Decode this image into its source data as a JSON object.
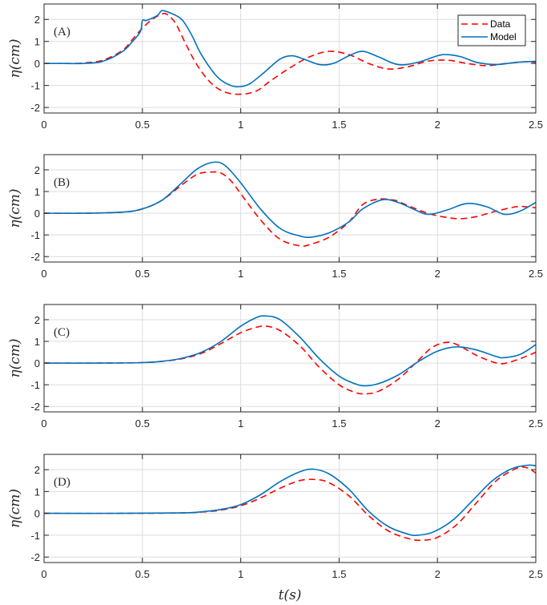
{
  "chart_data": [
    {
      "type": "line",
      "panel_label": "(A)",
      "xlim": [
        0,
        2.5
      ],
      "ylim": [
        -2.25,
        2.7
      ],
      "xticks": [
        "0",
        "0.5",
        "1",
        "1.5",
        "2",
        "2.5"
      ],
      "yticks": [
        "-2",
        "-1",
        "0",
        "1",
        "2"
      ],
      "ylabel": "η(cm)",
      "xlabel": "",
      "grid": true,
      "legend": {
        "placement": "top-right",
        "entries": [
          "Data",
          "Model"
        ]
      },
      "series": [
        {
          "name": "Data",
          "style": "dashed",
          "color": "#ff0000",
          "x": [
            0,
            0.1,
            0.2,
            0.3,
            0.4,
            0.45,
            0.5,
            0.55,
            0.6,
            0.63,
            0.67,
            0.72,
            0.78,
            0.85,
            0.92,
            1.0,
            1.08,
            1.15,
            1.25,
            1.35,
            1.45,
            1.55,
            1.65,
            1.75,
            1.85,
            1.95,
            2.05,
            2.15,
            2.25,
            2.35,
            2.45,
            2.5
          ],
          "y": [
            0,
            0,
            0.02,
            0.15,
            0.6,
            1.1,
            1.6,
            2.0,
            2.25,
            2.2,
            1.8,
            0.9,
            -0.1,
            -0.9,
            -1.3,
            -1.4,
            -1.25,
            -0.8,
            -0.2,
            0.3,
            0.55,
            0.4,
            0.0,
            -0.25,
            -0.15,
            0.1,
            0.15,
            0.0,
            -0.1,
            0.0,
            0.08,
            0.05
          ]
        },
        {
          "name": "Model",
          "style": "solid",
          "color": "#0072bd",
          "x": [
            0,
            0.1,
            0.2,
            0.3,
            0.4,
            0.45,
            0.49,
            0.5,
            0.52,
            0.56,
            0.58,
            0.6,
            0.64,
            0.7,
            0.75,
            0.8,
            0.88,
            0.95,
            1.0,
            1.05,
            1.12,
            1.2,
            1.26,
            1.32,
            1.4,
            1.47,
            1.55,
            1.62,
            1.7,
            1.8,
            1.9,
            2.0,
            2.05,
            2.12,
            2.2,
            2.3,
            2.4,
            2.5
          ],
          "y": [
            0,
            0,
            0,
            0.1,
            0.55,
            1.0,
            1.45,
            1.95,
            1.95,
            2.1,
            2.2,
            2.4,
            2.3,
            2.0,
            1.3,
            0.4,
            -0.6,
            -1.0,
            -1.05,
            -0.9,
            -0.4,
            0.2,
            0.35,
            0.2,
            -0.05,
            0.0,
            0.35,
            0.55,
            0.3,
            -0.05,
            0.05,
            0.35,
            0.4,
            0.3,
            0.05,
            -0.05,
            0.05,
            0.1
          ]
        }
      ]
    },
    {
      "type": "line",
      "panel_label": "(B)",
      "xlim": [
        0,
        2.5
      ],
      "ylim": [
        -2.25,
        2.7
      ],
      "xticks": [
        "0",
        "0.5",
        "1",
        "1.5",
        "2",
        "2.5"
      ],
      "yticks": [
        "-2",
        "-1",
        "0",
        "1",
        "2"
      ],
      "ylabel": "η(cm)",
      "xlabel": "",
      "grid": true,
      "series": [
        {
          "name": "Data",
          "style": "dashed",
          "color": "#ff0000",
          "x": [
            0,
            0.2,
            0.4,
            0.5,
            0.6,
            0.7,
            0.78,
            0.85,
            0.9,
            0.95,
            1.0,
            1.1,
            1.2,
            1.3,
            1.35,
            1.45,
            1.55,
            1.62,
            1.7,
            1.78,
            1.85,
            1.95,
            2.05,
            2.12,
            2.2,
            2.3,
            2.4,
            2.45,
            2.5
          ],
          "y": [
            0,
            0,
            0.05,
            0.2,
            0.6,
            1.3,
            1.8,
            1.9,
            1.85,
            1.5,
            0.9,
            -0.3,
            -1.2,
            -1.5,
            -1.45,
            -1.1,
            -0.4,
            0.4,
            0.65,
            0.6,
            0.35,
            0.0,
            -0.2,
            -0.25,
            -0.15,
            0.1,
            0.3,
            0.3,
            0.25
          ]
        },
        {
          "name": "Model",
          "style": "solid",
          "color": "#0072bd",
          "x": [
            0,
            0.2,
            0.4,
            0.5,
            0.6,
            0.7,
            0.78,
            0.86,
            0.92,
            1.0,
            1.1,
            1.2,
            1.3,
            1.36,
            1.45,
            1.55,
            1.62,
            1.72,
            1.8,
            1.9,
            1.96,
            2.05,
            2.15,
            2.25,
            2.34,
            2.42,
            2.5
          ],
          "y": [
            0,
            0,
            0.05,
            0.2,
            0.6,
            1.4,
            2.05,
            2.35,
            2.2,
            1.4,
            0.2,
            -0.7,
            -1.05,
            -1.1,
            -0.9,
            -0.4,
            0.2,
            0.62,
            0.5,
            0.1,
            -0.05,
            0.15,
            0.45,
            0.3,
            -0.05,
            0.1,
            0.5
          ]
        }
      ]
    },
    {
      "type": "line",
      "panel_label": "(C)",
      "xlim": [
        0,
        2.5
      ],
      "ylim": [
        -2.25,
        2.7
      ],
      "xticks": [
        "0",
        "0.5",
        "1",
        "1.5",
        "2",
        "2.5"
      ],
      "yticks": [
        "-2",
        "-1",
        "0",
        "1",
        "2"
      ],
      "ylabel": "η(cm)",
      "xlabel": "",
      "grid": true,
      "series": [
        {
          "name": "Data",
          "style": "dashed",
          "color": "#ff0000",
          "x": [
            0,
            0.3,
            0.5,
            0.6,
            0.7,
            0.8,
            0.9,
            1.0,
            1.08,
            1.13,
            1.2,
            1.3,
            1.4,
            1.5,
            1.58,
            1.63,
            1.7,
            1.8,
            1.9,
            1.97,
            2.04,
            2.1,
            2.2,
            2.3,
            2.35,
            2.42,
            2.5
          ],
          "y": [
            0,
            0,
            0.02,
            0.08,
            0.2,
            0.45,
            0.9,
            1.4,
            1.65,
            1.7,
            1.5,
            0.8,
            -0.2,
            -1.0,
            -1.35,
            -1.42,
            -1.3,
            -0.75,
            0.1,
            0.7,
            0.95,
            0.85,
            0.35,
            0.0,
            0.0,
            0.2,
            0.5
          ]
        },
        {
          "name": "Model",
          "style": "solid",
          "color": "#0072bd",
          "x": [
            0,
            0.3,
            0.5,
            0.6,
            0.7,
            0.8,
            0.9,
            1.0,
            1.08,
            1.13,
            1.2,
            1.3,
            1.4,
            1.5,
            1.58,
            1.63,
            1.7,
            1.8,
            1.9,
            2.0,
            2.1,
            2.2,
            2.3,
            2.34,
            2.42,
            2.5
          ],
          "y": [
            0,
            0,
            0.02,
            0.08,
            0.22,
            0.5,
            1.0,
            1.7,
            2.1,
            2.17,
            2.0,
            1.2,
            0.2,
            -0.6,
            -0.95,
            -1.05,
            -0.95,
            -0.55,
            0.05,
            0.55,
            0.75,
            0.6,
            0.3,
            0.25,
            0.4,
            0.85
          ]
        }
      ]
    },
    {
      "type": "line",
      "panel_label": "(D)",
      "xlim": [
        0,
        2.5
      ],
      "ylim": [
        -2.25,
        2.7
      ],
      "xticks": [
        "0",
        "0.5",
        "1",
        "1.5",
        "2",
        "2.5"
      ],
      "yticks": [
        "-2",
        "-1",
        "0",
        "1",
        "2"
      ],
      "ylabel": "η(cm)",
      "xlabel": "t(s)",
      "grid": true,
      "series": [
        {
          "name": "Data",
          "style": "dashed",
          "color": "#ff0000",
          "x": [
            0,
            0.4,
            0.7,
            0.8,
            0.9,
            1.0,
            1.1,
            1.2,
            1.3,
            1.38,
            1.45,
            1.55,
            1.65,
            1.75,
            1.85,
            1.92,
            2.0,
            2.1,
            2.2,
            2.3,
            2.4,
            2.45,
            2.5
          ],
          "y": [
            0,
            0,
            0.02,
            0.06,
            0.15,
            0.35,
            0.7,
            1.15,
            1.5,
            1.55,
            1.4,
            0.8,
            -0.1,
            -0.8,
            -1.15,
            -1.23,
            -1.1,
            -0.5,
            0.5,
            1.5,
            2.05,
            2.1,
            1.85
          ]
        },
        {
          "name": "Model",
          "style": "solid",
          "color": "#0072bd",
          "x": [
            0,
            0.4,
            0.7,
            0.8,
            0.9,
            1.0,
            1.1,
            1.2,
            1.3,
            1.37,
            1.45,
            1.55,
            1.65,
            1.75,
            1.85,
            1.9,
            1.98,
            2.08,
            2.18,
            2.28,
            2.38,
            2.46,
            2.5
          ],
          "y": [
            0,
            0,
            0.02,
            0.07,
            0.18,
            0.4,
            0.85,
            1.45,
            1.9,
            2.02,
            1.8,
            1.1,
            0.1,
            -0.6,
            -0.95,
            -1.0,
            -0.85,
            -0.3,
            0.6,
            1.5,
            2.05,
            2.2,
            2.18
          ]
        }
      ]
    }
  ]
}
